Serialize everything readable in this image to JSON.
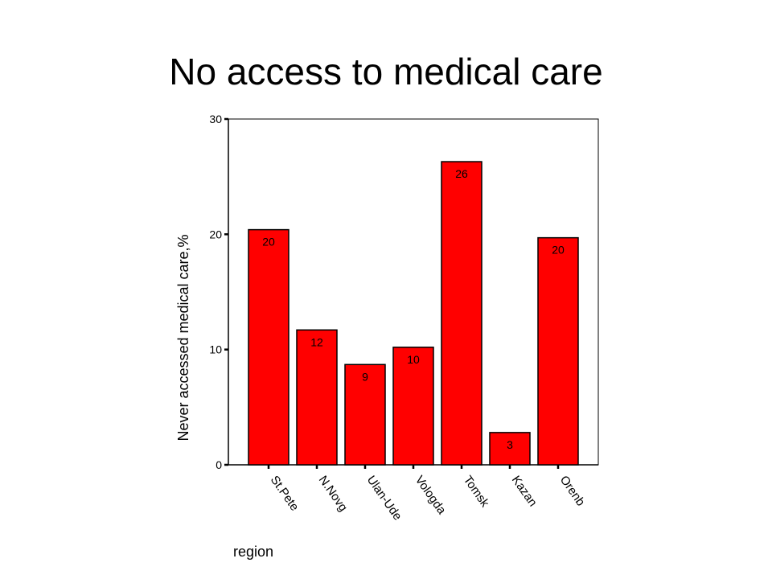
{
  "title": "No access to medical care",
  "chart_data": {
    "type": "bar",
    "categories": [
      "St.Pete",
      "N.Novg",
      "Ulan-Ude",
      "Vologda",
      "Tomsk",
      "Kazan",
      "Orenb"
    ],
    "values": [
      20.4,
      11.7,
      8.7,
      10.2,
      26.3,
      2.8,
      19.7
    ],
    "data_labels": [
      "20",
      "12",
      "9",
      "10",
      "26",
      "3",
      "20"
    ],
    "ylabel": "Never accessed medical care,%",
    "xlabel": "region",
    "ylim": [
      0,
      30
    ],
    "yticks": [
      0,
      10,
      20,
      30
    ],
    "bar_color": "#ff0000",
    "grid": false
  }
}
